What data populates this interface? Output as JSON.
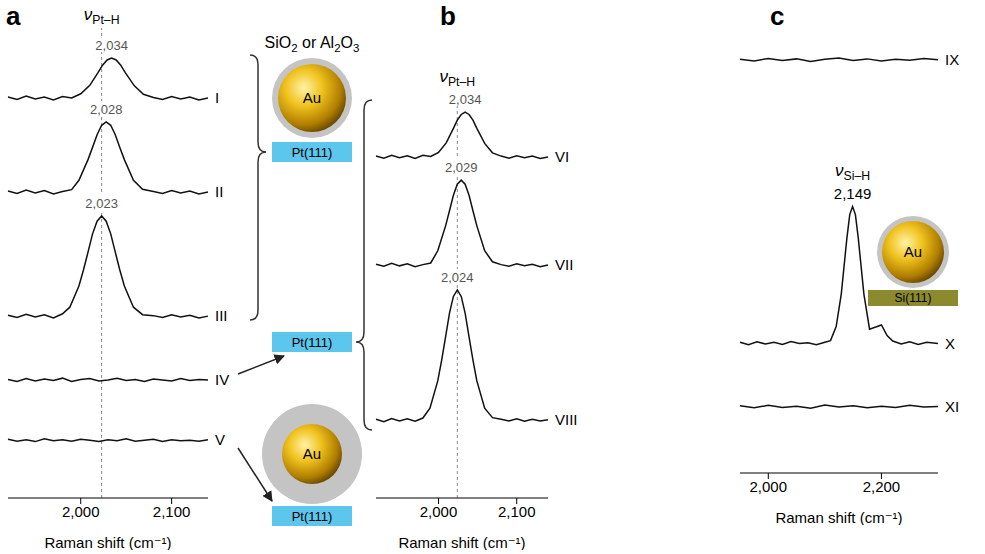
{
  "chart_data": [
    {
      "type": "line",
      "panel": "a",
      "x_label": "Raman shift (cm⁻¹)",
      "xlim": [
        1920,
        2140
      ],
      "xticks": [
        {
          "value": 2000,
          "label": "2,000"
        },
        {
          "value": 2100,
          "label": "2,100"
        }
      ],
      "ylim": [
        0,
        100
      ],
      "tick_labels": "x",
      "grid": false,
      "mode_label": "νPt–H",
      "reference_x": 2023,
      "series": [
        {
          "name": "I",
          "color": "#111111",
          "peak": {
            "value": 2034,
            "label": "2,034"
          },
          "x": [
            1920,
            1930,
            1940,
            1950,
            1960,
            1970,
            1980,
            1990,
            2000,
            2010,
            2019,
            2024,
            2029,
            2034,
            2039,
            2044,
            2049,
            2059,
            2069,
            2080,
            2090,
            2100,
            2110,
            2120,
            2130,
            2140
          ],
          "values": [
            85.3,
            84.8,
            85.5,
            84.9,
            85.3,
            84.7,
            85.4,
            85.1,
            86.0,
            87.8,
            90.5,
            92.1,
            93.2,
            93.6,
            93.2,
            92.1,
            90.5,
            87.7,
            85.9,
            85.2,
            84.8,
            85.4,
            84.9,
            85.3,
            84.7,
            85.1
          ]
        },
        {
          "name": "II",
          "color": "#111111",
          "peak": {
            "value": 2028,
            "label": "2,028"
          },
          "x": [
            1920,
            1930,
            1940,
            1950,
            1960,
            1970,
            1980,
            1990,
            1998,
            2008,
            2013,
            2018,
            2023,
            2028,
            2033,
            2038,
            2043,
            2048,
            2058,
            2068,
            2080,
            2090,
            2100,
            2110,
            2120,
            2130,
            2140
          ],
          "values": [
            65.3,
            64.8,
            65.5,
            64.9,
            65.4,
            64.7,
            65.2,
            65.6,
            67.6,
            72.0,
            74.6,
            77.3,
            79.3,
            80.0,
            79.3,
            77.3,
            74.6,
            72.0,
            67.6,
            65.7,
            65.2,
            64.8,
            65.4,
            64.9,
            65.3,
            64.7,
            65.1
          ]
        },
        {
          "name": "III",
          "color": "#111111",
          "peak": {
            "value": 2023,
            "label": "2,023"
          },
          "x": [
            1920,
            1930,
            1940,
            1950,
            1960,
            1970,
            1980,
            1988,
            1998,
            2003,
            2008,
            2013,
            2018,
            2023,
            2028,
            2033,
            2038,
            2043,
            2048,
            2058,
            2068,
            2080,
            2090,
            2100,
            2110,
            2120,
            2130,
            2140
          ],
          "values": [
            38.9,
            38.4,
            39.1,
            38.5,
            39.0,
            38.3,
            39.2,
            40.6,
            45.1,
            48.5,
            52.3,
            56.2,
            58.9,
            60.0,
            58.9,
            56.2,
            52.3,
            48.5,
            45.1,
            40.6,
            39.0,
            38.8,
            38.4,
            39.0,
            38.5,
            38.9,
            38.3,
            38.7
          ]
        },
        {
          "name": "IV",
          "color": "#111111",
          "x": [
            1920,
            1930,
            1940,
            1950,
            1960,
            1970,
            1980,
            1990,
            2000,
            2010,
            2020,
            2030,
            2040,
            2050,
            2060,
            2070,
            2080,
            2090,
            2100,
            2110,
            2120,
            2130,
            2140
          ],
          "values": [
            25.2,
            24.8,
            25.4,
            24.9,
            25.3,
            25.0,
            25.5,
            24.8,
            25.2,
            25.4,
            24.9,
            25.1,
            25.5,
            25.0,
            25.2,
            24.8,
            25.3,
            25.1,
            24.9,
            25.4,
            25.0,
            25.2,
            25.1
          ]
        },
        {
          "name": "V",
          "color": "#111111",
          "x": [
            1920,
            1930,
            1940,
            1950,
            1960,
            1970,
            1980,
            1990,
            2000,
            2010,
            2020,
            2030,
            2040,
            2050,
            2060,
            2070,
            2080,
            2090,
            2100,
            2110,
            2120,
            2130,
            2140
          ],
          "values": [
            12.5,
            12.1,
            12.4,
            12.0,
            12.6,
            12.2,
            12.4,
            12.1,
            12.5,
            12.3,
            12.0,
            12.4,
            12.2,
            12.6,
            12.1,
            12.3,
            12.5,
            12.0,
            12.4,
            12.2,
            12.3,
            12.1,
            12.4
          ]
        }
      ]
    },
    {
      "type": "line",
      "panel": "b",
      "x_label": "Raman shift (cm⁻¹)",
      "xlim": [
        1920,
        2140
      ],
      "xticks": [
        {
          "value": 2000,
          "label": "2,000"
        },
        {
          "value": 2100,
          "label": "2,100"
        }
      ],
      "ylim": [
        0,
        100
      ],
      "tick_labels": "x",
      "grid": false,
      "mode_label": "νPt–H",
      "reference_x": 2024,
      "series": [
        {
          "name": "VI",
          "color": "#111111",
          "peak": {
            "value": 2034,
            "label": "2,034"
          },
          "x": [
            1920,
            1930,
            1940,
            1950,
            1960,
            1970,
            1980,
            1990,
            2000,
            2010,
            2019,
            2024,
            2029,
            2034,
            2039,
            2044,
            2049,
            2059,
            2069,
            2080,
            2090,
            2100,
            2110,
            2120,
            2130,
            2140
          ],
          "values": [
            83.8,
            83.3,
            84.0,
            83.4,
            83.9,
            83.2,
            84.0,
            83.7,
            84.7,
            87.1,
            90.6,
            92.6,
            94.0,
            94.6,
            94.0,
            92.6,
            90.6,
            86.9,
            84.6,
            83.8,
            83.3,
            83.9,
            83.4,
            83.8,
            83.2,
            83.6
          ]
        },
        {
          "name": "VII",
          "color": "#111111",
          "peak": {
            "value": 2029,
            "label": "2,029"
          },
          "x": [
            1920,
            1930,
            1940,
            1950,
            1960,
            1970,
            1980,
            1990,
            1999,
            2009,
            2014,
            2019,
            2024,
            2029,
            2034,
            2039,
            2044,
            2049,
            2059,
            2069,
            2080,
            2090,
            2100,
            2110,
            2120,
            2130,
            2140
          ],
          "values": [
            57.3,
            56.8,
            57.5,
            56.9,
            57.4,
            56.7,
            57.2,
            57.6,
            60.6,
            66.7,
            70.4,
            74.2,
            76.9,
            77.9,
            76.9,
            74.2,
            70.4,
            66.7,
            60.6,
            57.9,
            57.2,
            56.8,
            57.4,
            56.9,
            57.3,
            56.7,
            57.1
          ]
        },
        {
          "name": "VIII",
          "color": "#111111",
          "peak": {
            "value": 2024,
            "label": "2,024"
          },
          "x": [
            1920,
            1930,
            1940,
            1950,
            1960,
            1970,
            1980,
            1989,
            1999,
            2004,
            2009,
            2014,
            2019,
            2024,
            2029,
            2034,
            2039,
            2044,
            2049,
            2059,
            2069,
            2080,
            2090,
            2100,
            2110,
            2120,
            2130,
            2140
          ],
          "values": [
            19.3,
            18.7,
            19.5,
            18.9,
            19.4,
            18.8,
            19.6,
            22.0,
            28.7,
            33.8,
            39.5,
            45.3,
            49.4,
            51.0,
            49.4,
            45.3,
            39.5,
            33.8,
            28.7,
            22.0,
            19.7,
            19.3,
            18.9,
            19.4,
            18.8,
            19.3,
            18.9,
            19.2
          ]
        }
      ]
    },
    {
      "type": "line",
      "panel": "c",
      "x_label": "Raman shift (cm⁻¹)",
      "xlim": [
        1950,
        2300
      ],
      "xticks": [
        {
          "value": 2000,
          "label": "2,000"
        },
        {
          "value": 2200,
          "label": "2,200"
        }
      ],
      "ylim": [
        0,
        100
      ],
      "tick_labels": "x",
      "grid": false,
      "mode_label": "νSi–H",
      "series": [
        {
          "name": "IX",
          "color": "#111111",
          "x": [
            1950,
            1975,
            2000,
            2025,
            2050,
            2075,
            2100,
            2125,
            2150,
            2175,
            2200,
            2225,
            2250,
            2275,
            2300
          ],
          "values": [
            97.8,
            97.4,
            98.0,
            97.5,
            97.9,
            97.3,
            97.8,
            98.1,
            97.5,
            97.9,
            97.4,
            97.8,
            97.6,
            98.0,
            97.7
          ]
        },
        {
          "name": "X",
          "color": "#111111",
          "peak": {
            "value": 2149,
            "label": "2,149"
          },
          "x": [
            1950,
            1965,
            1980,
            1995,
            2010,
            2025,
            2040,
            2055,
            2070,
            2085,
            2100,
            2110,
            2120,
            2129,
            2139,
            2144,
            2149,
            2154,
            2159,
            2169,
            2179,
            2190,
            2200,
            2210,
            2220,
            2235,
            2250,
            2265,
            2280,
            2300
          ],
          "values": [
            30.9,
            30.3,
            31.0,
            30.5,
            30.9,
            30.4,
            31.1,
            30.6,
            30.8,
            30.3,
            30.9,
            31.3,
            34.6,
            42.3,
            55.6,
            61.1,
            63.0,
            61.1,
            55.6,
            42.3,
            34.0,
            34.5,
            35.0,
            32.5,
            31.2,
            30.5,
            31.0,
            30.4,
            30.9,
            30.6
          ]
        },
        {
          "name": "XI",
          "color": "#111111",
          "x": [
            1950,
            1975,
            2000,
            2025,
            2050,
            2075,
            2100,
            2125,
            2150,
            2175,
            2200,
            2225,
            2250,
            2275,
            2300
          ],
          "values": [
            15.9,
            15.4,
            16.0,
            15.5,
            15.8,
            15.3,
            16.1,
            15.6,
            15.9,
            15.4,
            15.8,
            15.5,
            16.0,
            15.6,
            15.7
          ]
        }
      ]
    }
  ],
  "diagrams": [
    {
      "shell": "SiO2 or Al2O3",
      "core": "Au",
      "substrate": "Pt(111)",
      "color": "#5cc6ec"
    },
    {
      "substrate": "Pt(111)",
      "color": "#5cc6ec"
    },
    {
      "core": "Au",
      "substrate": "Pt(111)",
      "color": "#5cc6ec"
    },
    {
      "core": "Au",
      "substrate": "Si(111)",
      "color": "#8b8a2e"
    }
  ]
}
